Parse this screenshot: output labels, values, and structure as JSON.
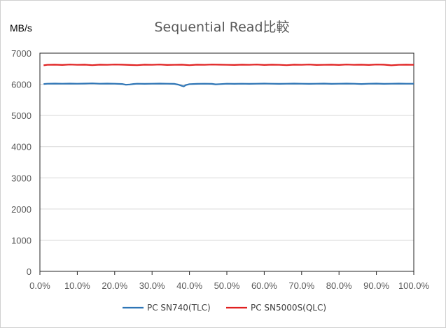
{
  "chart_data": {
    "type": "line",
    "title": "Sequential Read比較",
    "ylabel": "MB/s",
    "xlabel": "",
    "xlim": [
      0,
      100
    ],
    "ylim": [
      0,
      7000
    ],
    "x_ticks": [
      "0.0%",
      "10.0%",
      "20.0%",
      "30.0%",
      "40.0%",
      "50.0%",
      "60.0%",
      "70.0%",
      "80.0%",
      "90.0%",
      "100.0%"
    ],
    "y_ticks": [
      "0",
      "1000",
      "2000",
      "3000",
      "4000",
      "5000",
      "6000",
      "7000"
    ],
    "grid": "horizontal",
    "legend_position": "bottom",
    "series": [
      {
        "name": "PC SN740(TLC)",
        "color": "#2e75b6",
        "x": [
          1,
          2,
          4,
          6,
          8,
          10,
          12,
          14,
          16,
          18,
          20,
          22,
          23,
          24,
          25,
          26,
          28,
          30,
          32,
          34,
          36,
          37,
          38,
          38.5,
          39,
          40,
          42,
          44,
          46,
          47,
          48,
          50,
          52,
          54,
          56,
          58,
          60,
          62,
          64,
          66,
          68,
          70,
          72,
          74,
          76,
          78,
          80,
          82,
          84,
          86,
          88,
          90,
          92,
          94,
          96,
          98,
          100
        ],
        "y": [
          6010,
          6020,
          6025,
          6020,
          6025,
          6020,
          6025,
          6030,
          6020,
          6025,
          6020,
          6010,
          5985,
          5995,
          6010,
          6020,
          6015,
          6020,
          6025,
          6020,
          6015,
          5990,
          5950,
          5935,
          5975,
          6005,
          6015,
          6020,
          6015,
          6000,
          6005,
          6020,
          6015,
          6020,
          6015,
          6020,
          6025,
          6020,
          6015,
          6020,
          6025,
          6020,
          6015,
          6020,
          6025,
          6015,
          6020,
          6025,
          6020,
          6010,
          6020,
          6025,
          6015,
          6020,
          6025,
          6020,
          6020
        ]
      },
      {
        "name": "PC SN5000S(QLC)",
        "color": "#e02020",
        "x": [
          1,
          2,
          4,
          6,
          8,
          10,
          12,
          14,
          16,
          18,
          20,
          22,
          24,
          26,
          28,
          30,
          32,
          34,
          36,
          38,
          40,
          42,
          44,
          46,
          48,
          50,
          52,
          54,
          56,
          58,
          60,
          62,
          64,
          66,
          68,
          70,
          72,
          74,
          76,
          78,
          80,
          82,
          84,
          86,
          88,
          90,
          92,
          94,
          96,
          98,
          100
        ],
        "y": [
          6610,
          6625,
          6630,
          6620,
          6635,
          6625,
          6630,
          6615,
          6630,
          6625,
          6635,
          6630,
          6620,
          6615,
          6630,
          6625,
          6635,
          6620,
          6625,
          6630,
          6615,
          6630,
          6625,
          6635,
          6630,
          6625,
          6620,
          6630,
          6625,
          6635,
          6620,
          6630,
          6625,
          6615,
          6630,
          6625,
          6635,
          6620,
          6625,
          6630,
          6620,
          6635,
          6625,
          6630,
          6620,
          6635,
          6630,
          6610,
          6625,
          6630,
          6625
        ]
      }
    ]
  }
}
